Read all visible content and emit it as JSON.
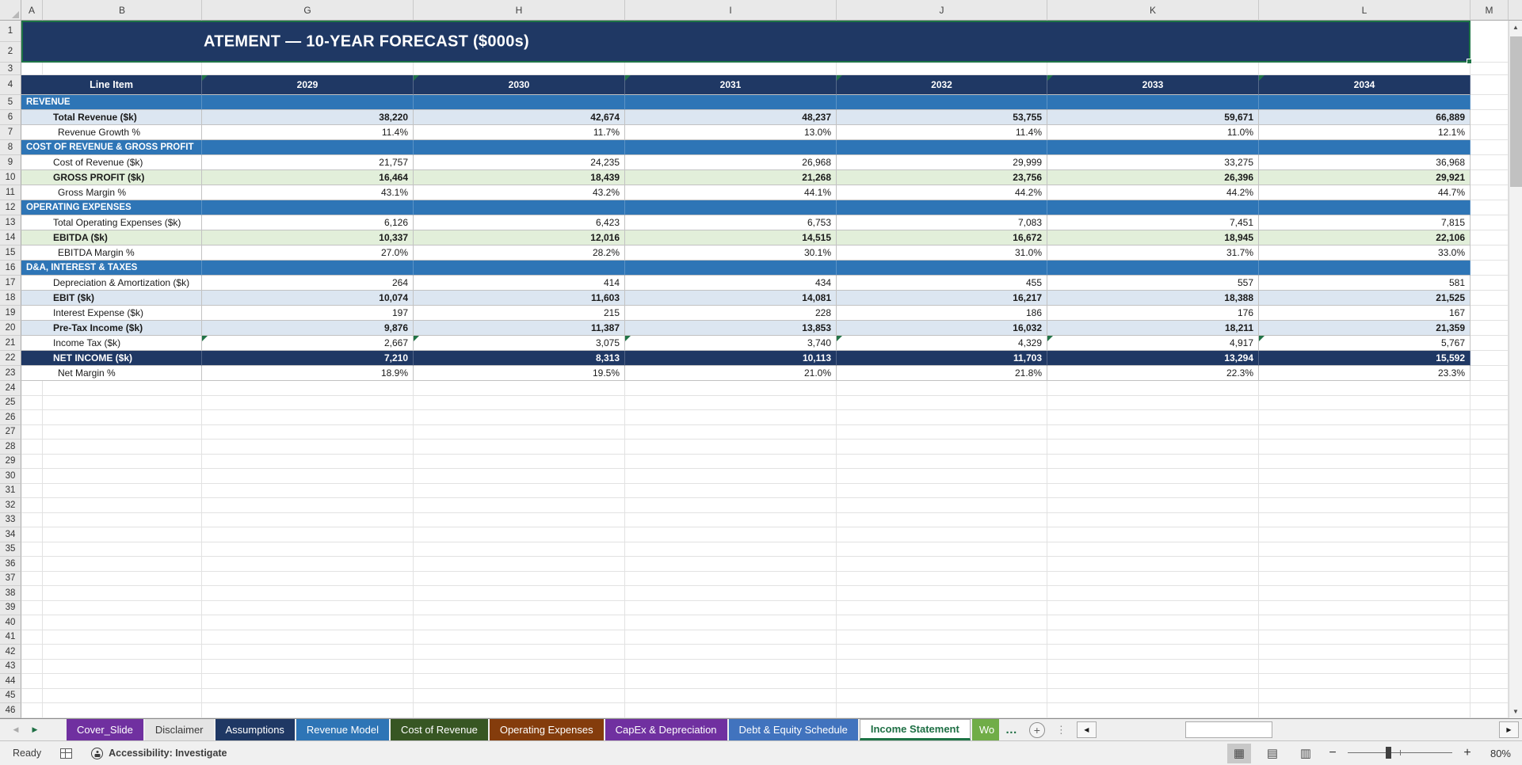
{
  "title_banner": {
    "visible_text": "ATEMENT — 10-YEAR FORECAST ($000s)"
  },
  "sheet": {
    "columns": [
      "A",
      "B",
      "G",
      "H",
      "I",
      "J",
      "K",
      "L",
      "M"
    ],
    "first_row": 1,
    "last_row": 46
  },
  "table": {
    "header": {
      "line_item": "Line Item",
      "years": [
        "2029",
        "2030",
        "2031",
        "2032",
        "2033",
        "2034"
      ],
      "year_error_flags": true
    },
    "rows": [
      {
        "row": 5,
        "type": "section",
        "label": "REVENUE"
      },
      {
        "row": 6,
        "type": "blue",
        "label": "Total Revenue ($k)",
        "values": [
          "38,220",
          "42,674",
          "48,237",
          "53,755",
          "59,671",
          "66,889"
        ]
      },
      {
        "row": 7,
        "type": "pct",
        "label": "Revenue Growth %",
        "values": [
          "11.4%",
          "11.7%",
          "13.0%",
          "11.4%",
          "11.0%",
          "12.1%"
        ]
      },
      {
        "row": 8,
        "type": "section",
        "label": "COST OF REVENUE & GROSS PROFIT"
      },
      {
        "row": 9,
        "type": "item",
        "label": "Cost of Revenue ($k)",
        "values": [
          "21,757",
          "24,235",
          "26,968",
          "29,999",
          "33,275",
          "36,968"
        ]
      },
      {
        "row": 10,
        "type": "green",
        "label": "GROSS PROFIT ($k)",
        "values": [
          "16,464",
          "18,439",
          "21,268",
          "23,756",
          "26,396",
          "29,921"
        ]
      },
      {
        "row": 11,
        "type": "pct",
        "label": "Gross Margin %",
        "values": [
          "43.1%",
          "43.2%",
          "44.1%",
          "44.2%",
          "44.2%",
          "44.7%"
        ]
      },
      {
        "row": 12,
        "type": "section",
        "label": "OPERATING EXPENSES"
      },
      {
        "row": 13,
        "type": "item",
        "label": "Total Operating Expenses ($k)",
        "values": [
          "6,126",
          "6,423",
          "6,753",
          "7,083",
          "7,451",
          "7,815"
        ]
      },
      {
        "row": 14,
        "type": "green",
        "label": "EBITDA ($k)",
        "values": [
          "10,337",
          "12,016",
          "14,515",
          "16,672",
          "18,945",
          "22,106"
        ]
      },
      {
        "row": 15,
        "type": "pct",
        "label": "EBITDA Margin %",
        "values": [
          "27.0%",
          "28.2%",
          "30.1%",
          "31.0%",
          "31.7%",
          "33.0%"
        ]
      },
      {
        "row": 16,
        "type": "section",
        "label": "D&A, INTEREST & TAXES"
      },
      {
        "row": 17,
        "type": "item",
        "label": "Depreciation & Amortization ($k)",
        "values": [
          "264",
          "414",
          "434",
          "455",
          "557",
          "581"
        ]
      },
      {
        "row": 18,
        "type": "blue",
        "label": "EBIT ($k)",
        "values": [
          "10,074",
          "11,603",
          "14,081",
          "16,217",
          "18,388",
          "21,525"
        ]
      },
      {
        "row": 19,
        "type": "item",
        "label": "Interest Expense ($k)",
        "values": [
          "197",
          "215",
          "228",
          "186",
          "176",
          "167"
        ]
      },
      {
        "row": 20,
        "type": "blue",
        "label": "Pre-Tax Income ($k)",
        "values": [
          "9,876",
          "11,387",
          "13,853",
          "16,032",
          "18,211",
          "21,359"
        ]
      },
      {
        "row": 21,
        "type": "item",
        "label": "Income Tax ($k)",
        "error_flags": true,
        "values": [
          "2,667",
          "3,075",
          "3,740",
          "4,329",
          "4,917",
          "5,767"
        ]
      },
      {
        "row": 22,
        "type": "navy",
        "label": "NET INCOME ($k)",
        "values": [
          "7,210",
          "8,313",
          "10,113",
          "11,703",
          "13,294",
          "15,592"
        ]
      },
      {
        "row": 23,
        "type": "pct",
        "label": "Net Margin %",
        "values": [
          "18.9%",
          "19.5%",
          "21.0%",
          "21.8%",
          "22.3%",
          "23.3%"
        ]
      }
    ]
  },
  "sheet_tabs": [
    {
      "label": "Cover_Slide",
      "bg": "#7030A0",
      "fg": "#FFFFFF"
    },
    {
      "label": "Disclaimer",
      "bg": "#E4E4E4",
      "fg": "#3A3A3A"
    },
    {
      "label": "Assumptions",
      "bg": "#1F3864",
      "fg": "#FFFFFF"
    },
    {
      "label": "Revenue Model",
      "bg": "#2E75B6",
      "fg": "#FFFFFF"
    },
    {
      "label": "Cost of Revenue",
      "bg": "#375623",
      "fg": "#FFFFFF"
    },
    {
      "label": "Operating Expenses",
      "bg": "#843C0C",
      "fg": "#FFFFFF"
    },
    {
      "label": "CapEx & Depreciation",
      "bg": "#7030A0",
      "fg": "#FFFFFF"
    },
    {
      "label": "Debt & Equity Schedule",
      "bg": "#4173BE",
      "fg": "#FFFFFF"
    },
    {
      "label": "Income Statement",
      "bg": "#FFFFFF",
      "fg": "#1E6F44",
      "active": true
    },
    {
      "label": "Wo",
      "bg": "#70AD47",
      "fg": "#FFFFFF",
      "truncated": true
    }
  ],
  "tab_bar": {
    "overflow_ellipsis": "…",
    "new_sheet": "+",
    "nav_left": "◀",
    "nav_right": "▶"
  },
  "status_bar": {
    "ready": "Ready",
    "accessibility": "Accessibility: Investigate",
    "zoom_level": "80%"
  },
  "colors": {
    "banner_navy": "#1F3864",
    "section_blue": "#2E75B6",
    "subtotal_blue": "#DCE6F1",
    "subtotal_green": "#E2EFDA",
    "selection_green": "#1E7446"
  }
}
